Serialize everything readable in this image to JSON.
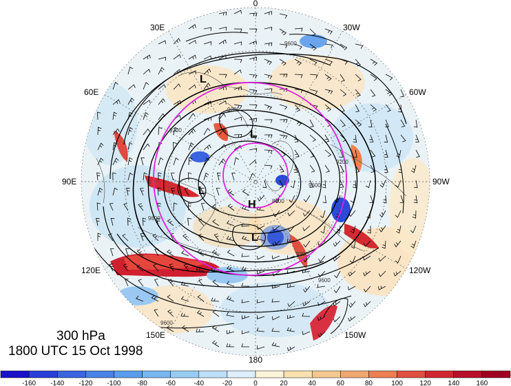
{
  "title": {
    "level": "300 hPa",
    "datetime": "1800 UTC 15 Oct 1998"
  },
  "map": {
    "projection": "north-polar-stereographic",
    "longitude_labels": [
      {
        "text": "0",
        "lon": 0
      },
      {
        "text": "30W",
        "lon": -30
      },
      {
        "text": "60W",
        "lon": -60
      },
      {
        "text": "90W",
        "lon": -90
      },
      {
        "text": "120W",
        "lon": -120
      },
      {
        "text": "150W",
        "lon": -150
      },
      {
        "text": "180",
        "lon": 180
      },
      {
        "text": "150E",
        "lon": 150
      },
      {
        "text": "120E",
        "lon": 120
      },
      {
        "text": "90E",
        "lon": 90
      },
      {
        "text": "60E",
        "lon": 60
      },
      {
        "text": "30E",
        "lon": 30
      }
    ],
    "pressure_systems": [
      {
        "text": "L"
      },
      {
        "text": "L"
      },
      {
        "text": "L"
      },
      {
        "text": "H"
      },
      {
        "text": "L"
      }
    ],
    "contour_labels": [
      "9600",
      "9200",
      "8800",
      "9600",
      "9200",
      "9600",
      "9200",
      "9600",
      "9600",
      "9200"
    ],
    "colors": {
      "contour": "#000000",
      "magenta_circles": "#e020e0",
      "negative_strong": "#1010c0",
      "positive_strong": "#c01020"
    }
  },
  "colorbar": {
    "ticks": [
      "-160",
      "-140",
      "-120",
      "-100",
      "-80",
      "-60",
      "-40",
      "-20",
      "0",
      "20",
      "40",
      "60",
      "80",
      "100",
      "120",
      "140",
      "160"
    ],
    "colors": [
      "#1a10c8",
      "#2a3fd8",
      "#3a64e0",
      "#4a82e6",
      "#5a9cec",
      "#78b6f0",
      "#98ccf4",
      "#bce0f8",
      "#def0fb",
      "#fcf4d8",
      "#f8e0b0",
      "#f4c890",
      "#f0a870",
      "#ea8054",
      "#e05040",
      "#d02830",
      "#b8102a",
      "#a00020"
    ]
  }
}
